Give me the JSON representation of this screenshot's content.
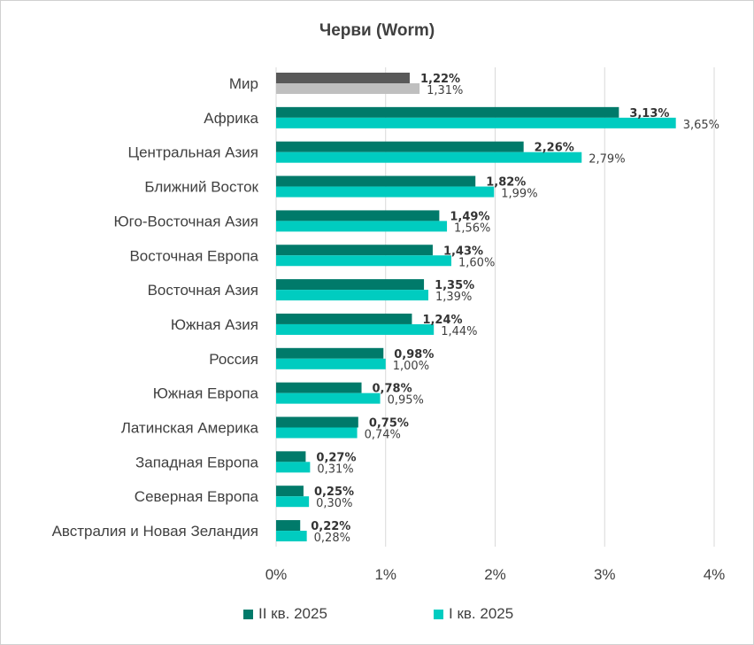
{
  "chart_data": {
    "type": "bar",
    "orientation": "horizontal",
    "title": "Черви (Worm)",
    "categories": [
      "Мир",
      "Африка",
      "Центральная Азия",
      "Ближний Восток",
      "Юго-Восточная Азия",
      "Восточная Европа",
      "Восточная Азия",
      "Южная Азия",
      "Россия",
      "Южная Европа",
      "Латинская Америка",
      "Западная Европа",
      "Северная Европа",
      "Австралия и Новая Зеландия"
    ],
    "series": [
      {
        "name": "II кв. 2025",
        "color": "#007a6a",
        "highlight_color": "#595959",
        "values": [
          1.22,
          3.13,
          2.26,
          1.82,
          1.49,
          1.43,
          1.35,
          1.24,
          0.98,
          0.78,
          0.75,
          0.27,
          0.25,
          0.22
        ],
        "labels": [
          "1,22%",
          "3,13%",
          "2,26%",
          "1,82%",
          "1,49%",
          "1,43%",
          "1,35%",
          "1,24%",
          "0,98%",
          "0,78%",
          "0,75%",
          "0,27%",
          "0,25%",
          "0,22%"
        ]
      },
      {
        "name": "I кв. 2025",
        "color": "#00ccc0",
        "highlight_color": "#bfbfbf",
        "values": [
          1.31,
          3.65,
          2.79,
          1.99,
          1.56,
          1.6,
          1.39,
          1.44,
          1.0,
          0.95,
          0.74,
          0.31,
          0.3,
          0.28
        ],
        "labels": [
          "1,31%",
          "3,65%",
          "2,79%",
          "1,99%",
          "1,56%",
          "1,60%",
          "1,39%",
          "1,44%",
          "1,00%",
          "0,95%",
          "0,74%",
          "0,31%",
          "0,30%",
          "0,28%"
        ]
      }
    ],
    "xlim": [
      0,
      4
    ],
    "x_ticks": [
      "0%",
      "1%",
      "2%",
      "3%",
      "4%"
    ],
    "grid": true,
    "legend": "bottom"
  },
  "legend": {
    "q2_label": "II кв. 2025",
    "q1_label": "I кв. 2025"
  }
}
